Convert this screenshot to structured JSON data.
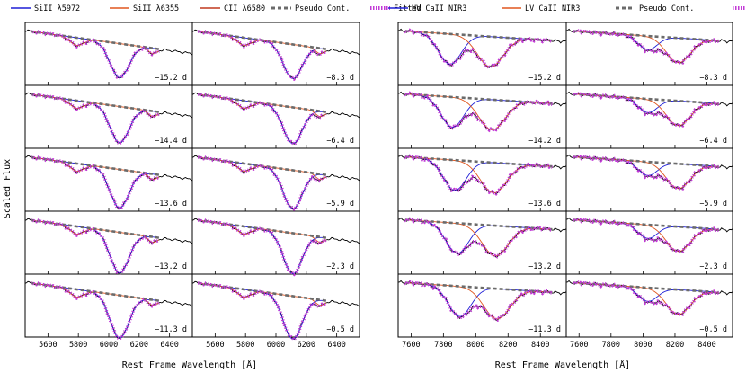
{
  "chart_data": {
    "type": "line",
    "ylabel": "Scaled Flux",
    "panels": [
      {
        "name": "si-ii-c-ii",
        "xlabel": "Rest Frame Wavelength [Å]",
        "xlim": [
          5450,
          6550
        ],
        "xticks": [
          5600,
          5800,
          6000,
          6200,
          6400
        ],
        "legend": [
          {
            "label": "SiII λ5972",
            "color": "#1f1fd6",
            "style": "solid"
          },
          {
            "label": "SiII λ6355",
            "color": "#e0561f",
            "style": "solid"
          },
          {
            "label": "CII λ6580",
            "color": "#c0391f",
            "style": "solid"
          },
          {
            "label": "Pseudo Cont.",
            "color": "#6b6b6b",
            "style": "dashed"
          },
          {
            "label": "Fitted",
            "color": "#c23ad6",
            "style": "dotted"
          }
        ],
        "left_phases": [
          "−15.2 d",
          "−14.4 d",
          "−13.6 d",
          "−13.2 d",
          "−11.3 d"
        ],
        "right_phases": [
          "−8.3 d",
          "−6.4 d",
          "−5.9 d",
          "−2.3 d",
          "−0.5 d"
        ]
      },
      {
        "name": "ca-ii-nir3",
        "xlabel": "Rest Frame Wavelength [Å]",
        "xlim": [
          7520,
          8560
        ],
        "xticks": [
          7600,
          7800,
          8000,
          8200,
          8400
        ],
        "legend": [
          {
            "label": "HV CaII NIR3",
            "color": "#1f1fd6",
            "style": "solid"
          },
          {
            "label": "LV CaII NIR3",
            "color": "#e0561f",
            "style": "solid"
          },
          {
            "label": "Pseudo Cont.",
            "color": "#6b6b6b",
            "style": "dashed"
          },
          {
            "label": "Fitted",
            "color": "#c23ad6",
            "style": "dotted"
          }
        ],
        "left_phases": [
          "−15.2 d",
          "−14.2 d",
          "−13.6 d",
          "−13.2 d",
          "−11.3 d"
        ],
        "right_phases": [
          "−8.3 d",
          "−6.4 d",
          "−5.9 d",
          "−2.3 d",
          "−0.5 d"
        ]
      }
    ]
  }
}
